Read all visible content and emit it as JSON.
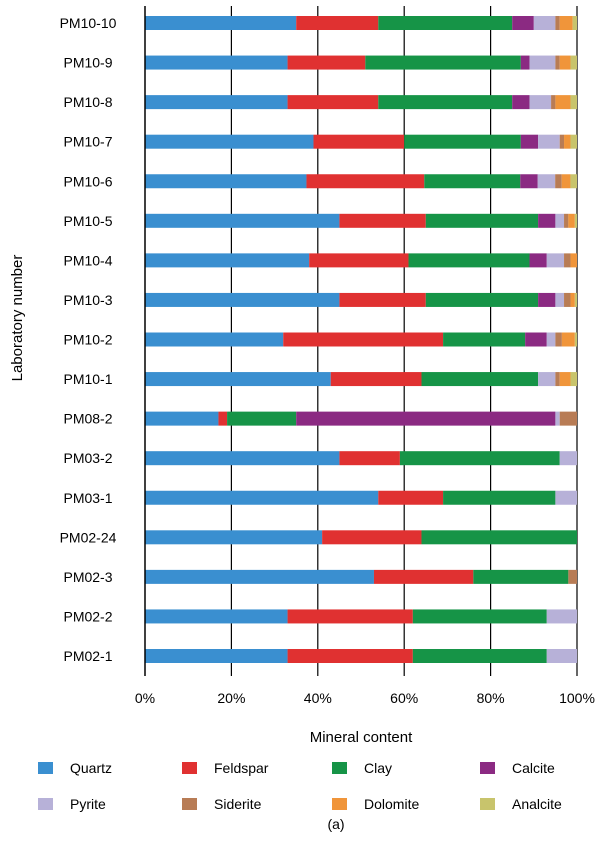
{
  "chart_data": {
    "type": "bar",
    "orientation": "horizontal",
    "stacked": true,
    "title": "",
    "caption": "(a)",
    "xlabel": "Mineral content",
    "ylabel": "Laboratory number",
    "xlim": [
      0,
      100
    ],
    "xticks": [
      "0%",
      "20%",
      "40%",
      "60%",
      "80%",
      "100%"
    ],
    "grid": "vertical",
    "legend_position": "bottom",
    "categories": [
      "PM10-10",
      "PM10-9",
      "PM10-8",
      "PM10-7",
      "PM10-6",
      "PM10-5",
      "PM10-4",
      "PM10-3",
      "PM10-2",
      "PM10-1",
      "PM08-2",
      "PM03-2",
      "PM03-1",
      "PM02-24",
      "PM02-3",
      "PM02-2",
      "PM02-1"
    ],
    "series": [
      {
        "name": "Quartz",
        "color": "#3a8fd0",
        "values": [
          35,
          33,
          33,
          39,
          37,
          45,
          38,
          45,
          32,
          43,
          17,
          45,
          54,
          41,
          53,
          33,
          33
        ]
      },
      {
        "name": "Feldspar",
        "color": "#e03131",
        "values": [
          19,
          18,
          21,
          21,
          27,
          20,
          23,
          20,
          37,
          21,
          2,
          14,
          15,
          23,
          23,
          29,
          29
        ]
      },
      {
        "name": "Clay",
        "color": "#169447",
        "values": [
          31,
          36,
          31,
          27,
          22,
          26,
          28,
          26,
          19,
          27,
          16,
          37,
          26,
          36,
          22,
          31,
          31
        ]
      },
      {
        "name": "Calcite",
        "color": "#8b2a82",
        "values": [
          5,
          2,
          4,
          4,
          4,
          4,
          4,
          4,
          5,
          0,
          60,
          0,
          0,
          0,
          0,
          0,
          0
        ]
      },
      {
        "name": "Pyrite",
        "color": "#b7b1d8",
        "values": [
          5,
          6,
          5,
          5,
          4,
          2,
          4,
          2,
          2,
          4,
          1,
          4,
          5,
          0,
          0,
          7,
          7
        ]
      },
      {
        "name": "Siderite",
        "color": "#b87c55",
        "values": [
          1,
          1,
          1,
          1,
          1.5,
          1,
          1.5,
          1.5,
          1.5,
          1,
          4,
          0,
          0,
          0,
          2,
          0,
          0
        ]
      },
      {
        "name": "Dolomite",
        "color": "#f0953a",
        "values": [
          3,
          2.5,
          3.5,
          1.5,
          2,
          1.5,
          1.5,
          1,
          3,
          2.5,
          0,
          0,
          0,
          0,
          0,
          0,
          0
        ]
      },
      {
        "name": "Analcite",
        "color": "#c8c46c",
        "values": [
          1,
          1.5,
          1.5,
          1.5,
          1.5,
          0.5,
          0,
          0.5,
          0.5,
          1.5,
          0,
          0,
          0,
          0,
          0,
          0,
          0
        ]
      }
    ]
  }
}
